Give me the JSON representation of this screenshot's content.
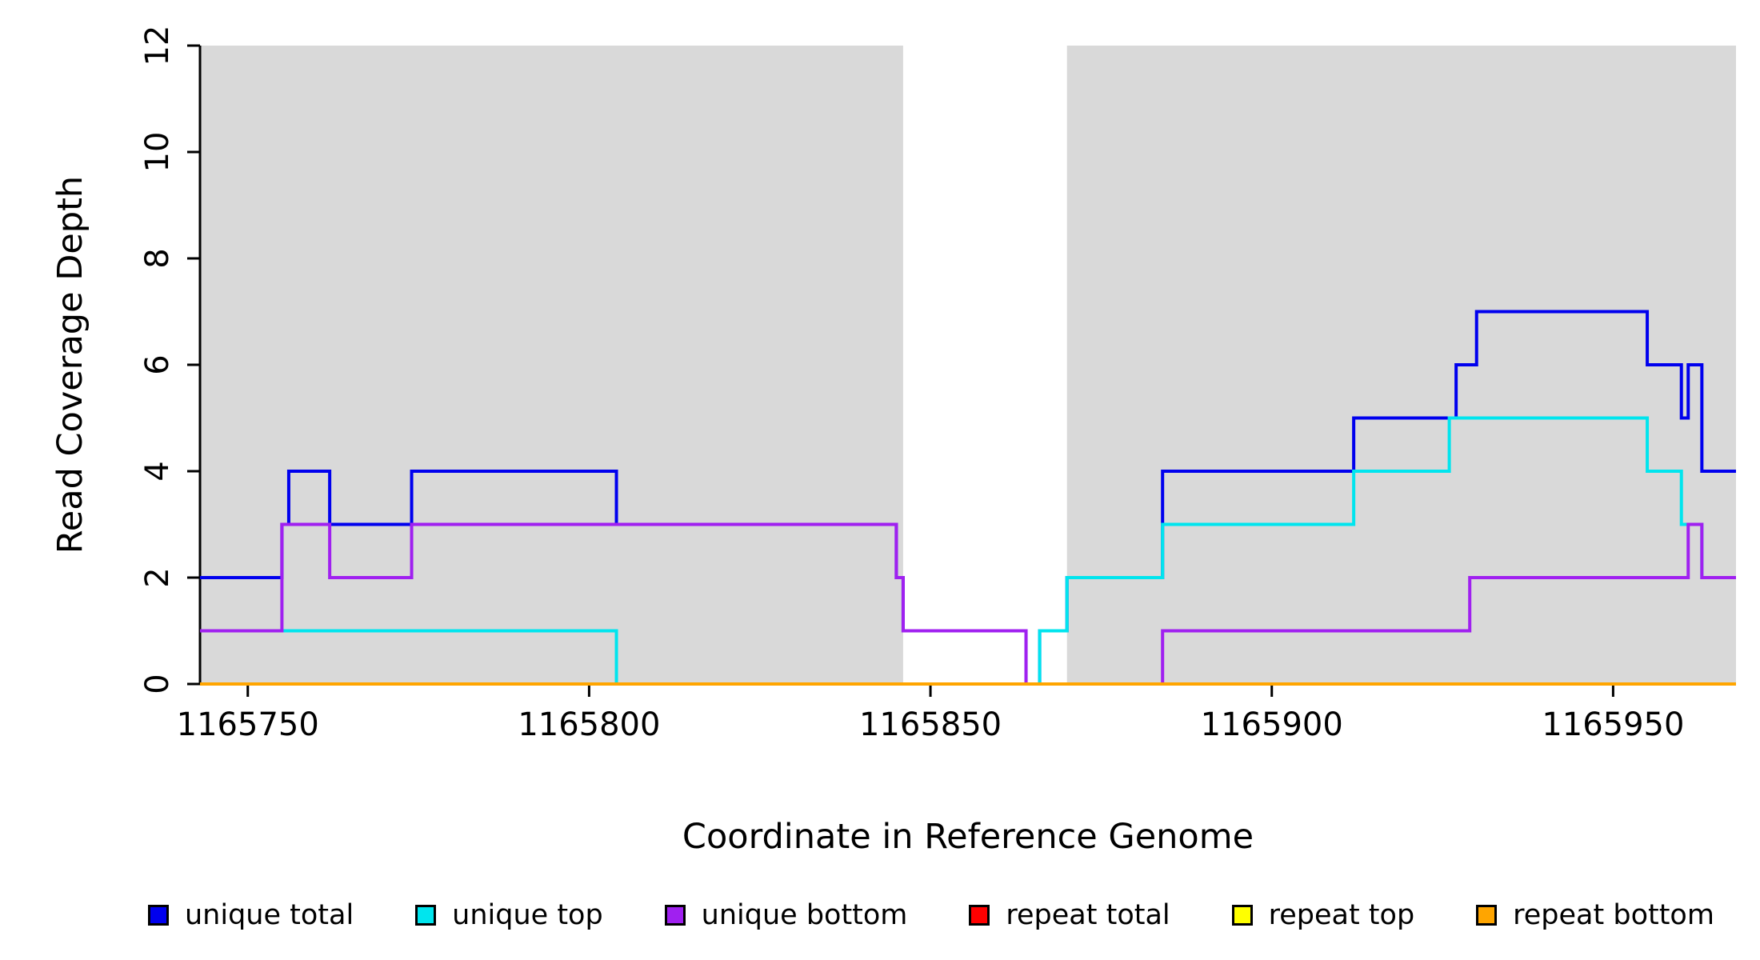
{
  "chart_data": {
    "type": "line",
    "subtype": "step-after",
    "title": "",
    "xlabel": "Coordinate in Reference Genome",
    "ylabel": "Read Coverage Depth",
    "xlim": [
      1165743,
      1165968
    ],
    "ylim": [
      0,
      12
    ],
    "x_end": 1165968,
    "x_ticks": [
      1165750,
      1165800,
      1165850,
      1165900,
      1165950
    ],
    "y_ticks": [
      0,
      2,
      4,
      6,
      8,
      10,
      12
    ],
    "grid": false,
    "background_color": "#ffffff",
    "shaded_region_color": "#d9d9d9",
    "shaded_regions": [
      {
        "x0": 1165743,
        "x1": 1165846
      },
      {
        "x0": 1165870,
        "x1": 1165968
      }
    ],
    "legend_position": "bottom",
    "series": [
      {
        "name": "unique total",
        "color": "#0000EE",
        "points": [
          [
            1165743,
            2
          ],
          [
            1165755,
            3
          ],
          [
            1165756,
            4
          ],
          [
            1165762,
            3
          ],
          [
            1165774,
            4
          ],
          [
            1165804,
            3
          ],
          [
            1165845,
            2
          ],
          [
            1165846,
            1
          ],
          [
            1165864,
            0
          ],
          [
            1165866,
            1
          ],
          [
            1165870,
            2
          ],
          [
            1165884,
            4
          ],
          [
            1165912,
            5
          ],
          [
            1165927,
            6
          ],
          [
            1165930,
            7
          ],
          [
            1165955,
            6
          ],
          [
            1165960,
            5
          ],
          [
            1165961,
            6
          ],
          [
            1165963,
            4
          ]
        ]
      },
      {
        "name": "unique top",
        "color": "#00E5EE",
        "points": [
          [
            1165743,
            1
          ],
          [
            1165804,
            0
          ],
          [
            1165866,
            1
          ],
          [
            1165870,
            2
          ],
          [
            1165884,
            3
          ],
          [
            1165912,
            4
          ],
          [
            1165926,
            5
          ],
          [
            1165955,
            4
          ],
          [
            1165960,
            3
          ],
          [
            1165963,
            2
          ]
        ]
      },
      {
        "name": "unique bottom",
        "color": "#A020F0",
        "points": [
          [
            1165743,
            1
          ],
          [
            1165755,
            3
          ],
          [
            1165762,
            2
          ],
          [
            1165774,
            3
          ],
          [
            1165845,
            2
          ],
          [
            1165846,
            1
          ],
          [
            1165864,
            0
          ],
          [
            1165884,
            1
          ],
          [
            1165929,
            2
          ],
          [
            1165961,
            3
          ],
          [
            1165963,
            2
          ]
        ]
      },
      {
        "name": "repeat total",
        "color": "#FF0000",
        "points": [
          [
            1165743,
            0
          ]
        ]
      },
      {
        "name": "repeat top",
        "color": "#FFFF00",
        "points": [
          [
            1165743,
            0
          ]
        ]
      },
      {
        "name": "repeat bottom",
        "color": "#FFA500",
        "points": [
          [
            1165743,
            0
          ]
        ]
      }
    ]
  },
  "legend": {
    "items": [
      {
        "label": "unique total",
        "color": "#0000EE"
      },
      {
        "label": "unique top",
        "color": "#00E5EE"
      },
      {
        "label": "unique bottom",
        "color": "#A020F0"
      },
      {
        "label": "repeat total",
        "color": "#FF0000"
      },
      {
        "label": "repeat top",
        "color": "#FFFF00"
      },
      {
        "label": "repeat bottom",
        "color": "#FFA500"
      }
    ]
  }
}
